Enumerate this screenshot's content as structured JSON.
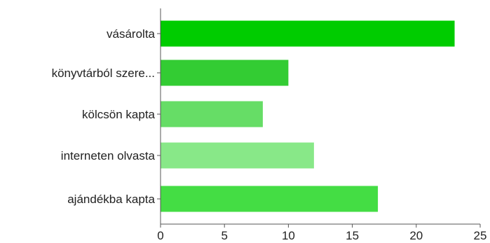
{
  "chart_data": {
    "type": "bar",
    "orientation": "horizontal",
    "categories": [
      "vásárolta",
      "könyvtárból szere...",
      "kölcsön kapta",
      "interneten olvasta",
      "ajándékba kapta"
    ],
    "values": [
      23,
      10,
      8,
      12,
      17
    ],
    "bar_colors": [
      "#00cc00",
      "#33cc33",
      "#66dd66",
      "#88e888",
      "#44dd44"
    ],
    "xlim": [
      0,
      25
    ],
    "xticks": [
      0,
      5,
      10,
      15,
      20,
      25
    ],
    "title": "",
    "xlabel": "",
    "ylabel": "",
    "grid": false,
    "legend": "none"
  }
}
